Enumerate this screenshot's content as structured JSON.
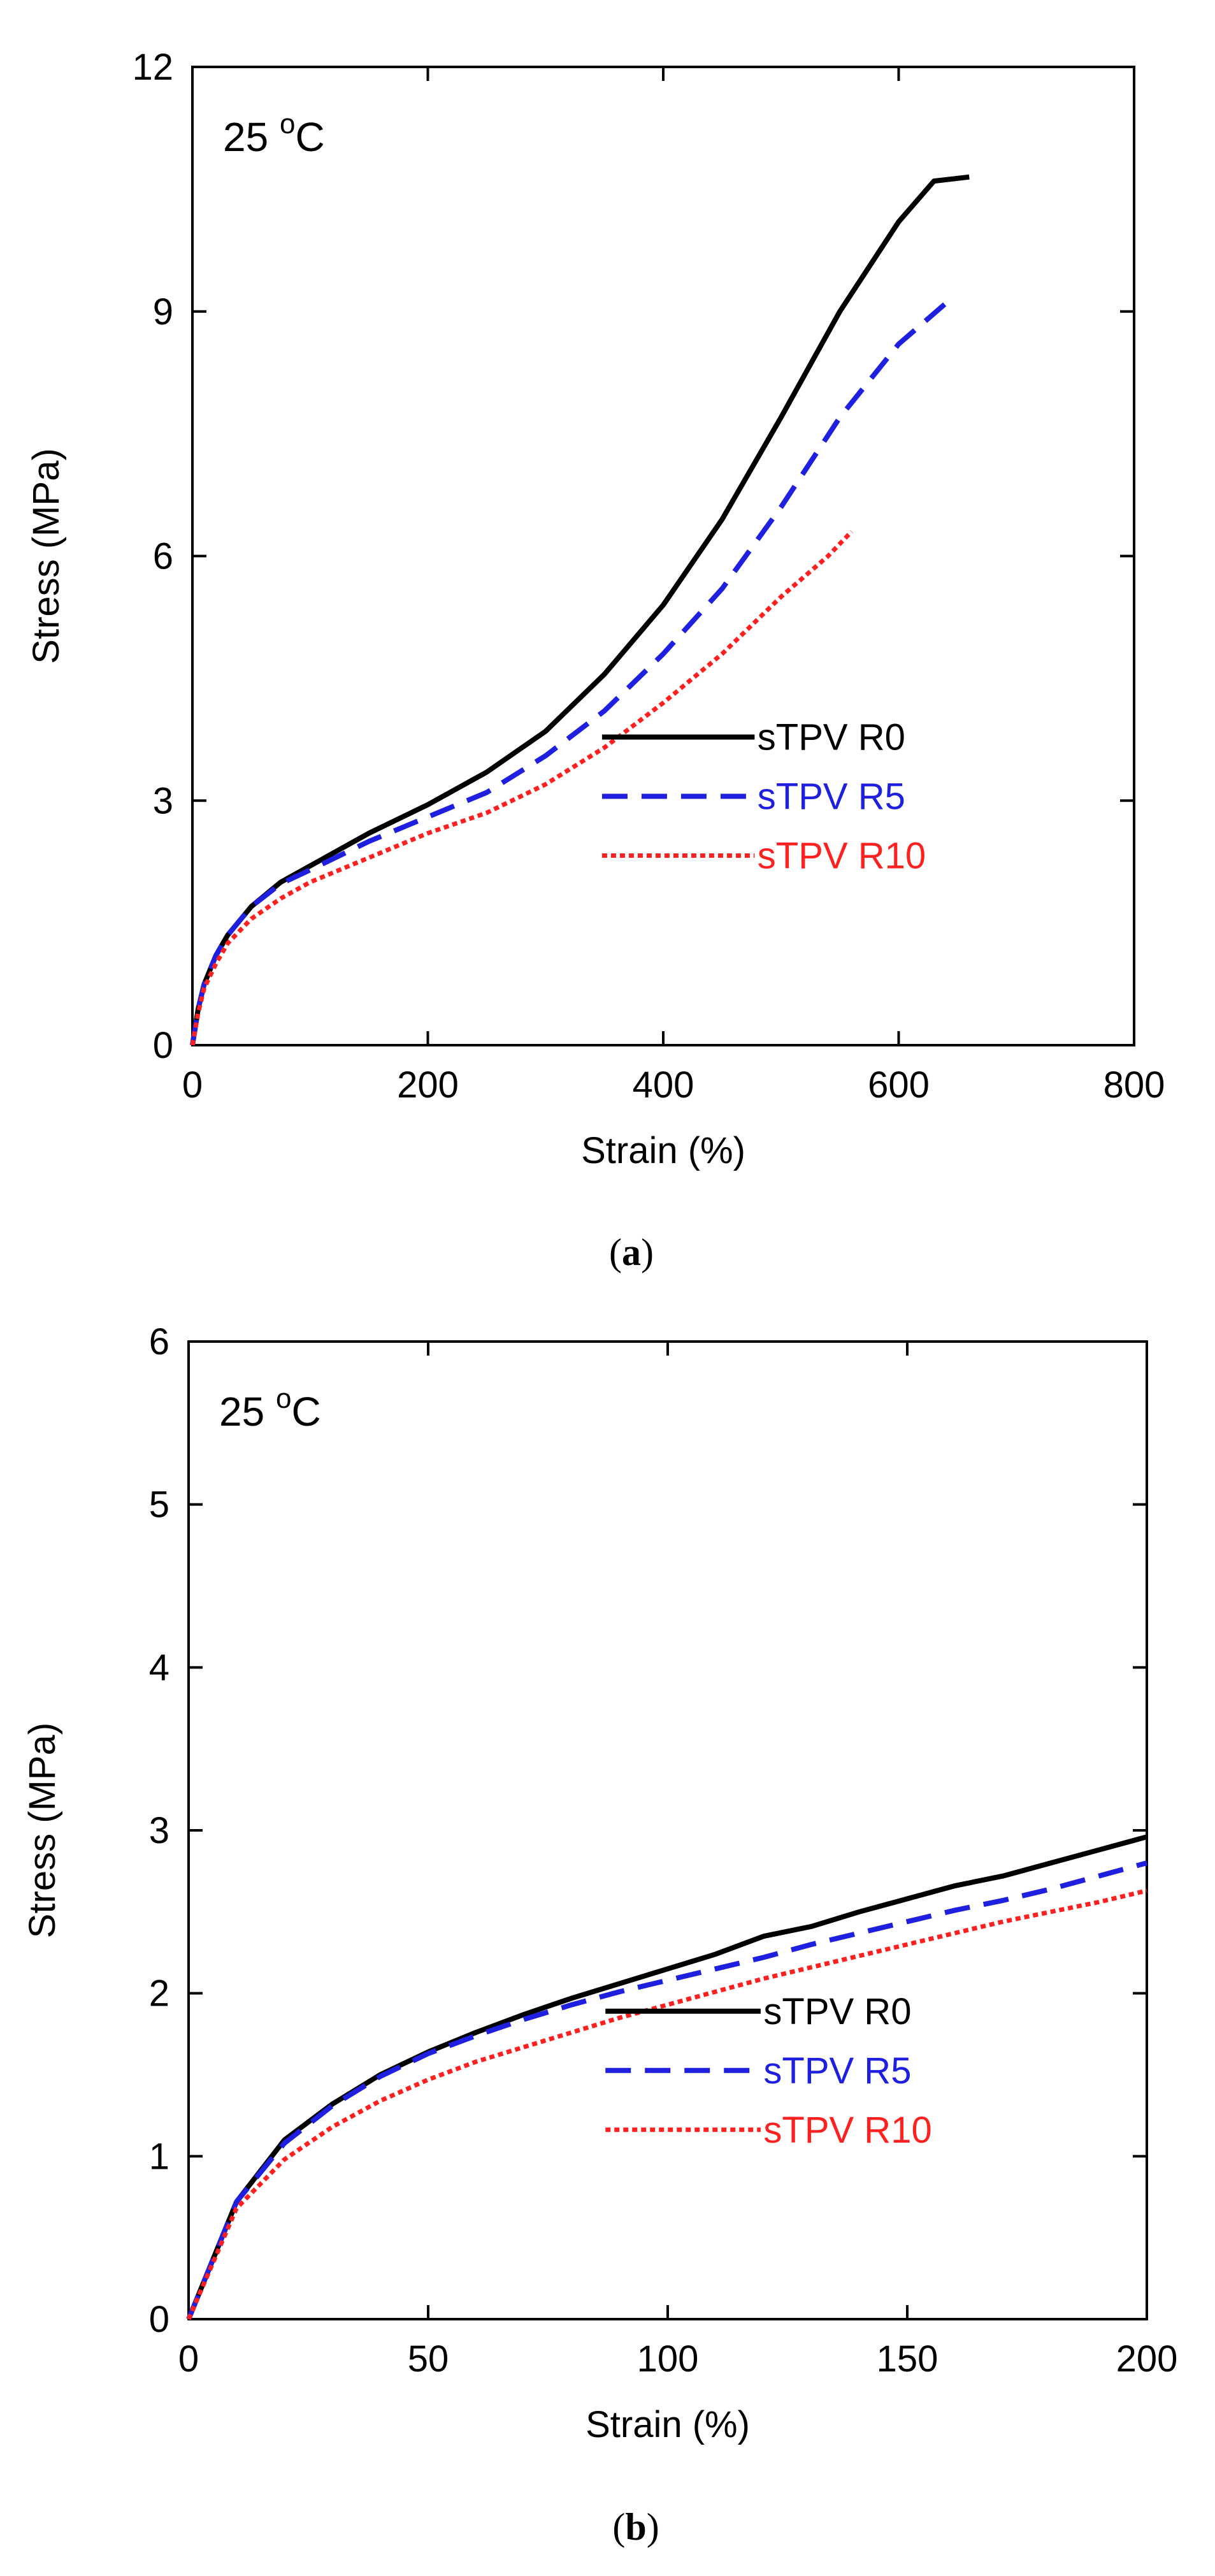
{
  "chart_data": [
    {
      "type": "line",
      "panel_caption": "(a)",
      "caption_letter": "a",
      "annotation": "25 °C",
      "xlabel": "Strain (%)",
      "ylabel": "Stress (MPa)",
      "xlim": [
        0,
        800
      ],
      "ylim": [
        0,
        12
      ],
      "xticks": [
        "0",
        "200",
        "400",
        "600",
        "800"
      ],
      "yticks": [
        "0",
        "3",
        "6",
        "9",
        "12"
      ],
      "legend_position": "bottom-right",
      "grid": false,
      "series": [
        {
          "name": "sTPV R0",
          "color": "#000000",
          "style": "solid",
          "x": [
            0,
            5,
            10,
            20,
            30,
            50,
            75,
            100,
            150,
            200,
            250,
            300,
            350,
            400,
            450,
            500,
            550,
            600,
            630,
            660
          ],
          "y": [
            0,
            0.45,
            0.75,
            1.1,
            1.35,
            1.7,
            2.0,
            2.2,
            2.6,
            2.95,
            3.35,
            3.85,
            4.55,
            5.4,
            6.45,
            7.7,
            9.0,
            10.1,
            10.6,
            10.65
          ]
        },
        {
          "name": "sTPV R5",
          "color": "#1f1fe0",
          "style": "dashed",
          "x": [
            0,
            5,
            10,
            20,
            30,
            50,
            75,
            100,
            150,
            200,
            250,
            300,
            350,
            400,
            450,
            500,
            550,
            600,
            640
          ],
          "y": [
            0,
            0.45,
            0.75,
            1.1,
            1.35,
            1.7,
            1.98,
            2.15,
            2.5,
            2.8,
            3.1,
            3.55,
            4.1,
            4.8,
            5.6,
            6.6,
            7.7,
            8.6,
            9.1
          ]
        },
        {
          "name": "sTPV R10",
          "color": "#ff2020",
          "style": "dotted",
          "x": [
            0,
            5,
            10,
            20,
            30,
            50,
            75,
            100,
            150,
            200,
            250,
            300,
            350,
            400,
            450,
            500,
            540,
            560
          ],
          "y": [
            0,
            0.4,
            0.7,
            1.0,
            1.25,
            1.55,
            1.8,
            2.0,
            2.3,
            2.6,
            2.85,
            3.2,
            3.65,
            4.2,
            4.8,
            5.5,
            6.0,
            6.3
          ]
        }
      ]
    },
    {
      "type": "line",
      "panel_caption": "(b)",
      "caption_letter": "b",
      "annotation": "25 °C",
      "xlabel": "Strain (%)",
      "ylabel": "Stress (MPa)",
      "xlim": [
        0,
        200
      ],
      "ylim": [
        0,
        6
      ],
      "xticks": [
        "0",
        "50",
        "100",
        "150",
        "200"
      ],
      "yticks": [
        "0",
        "1",
        "2",
        "3",
        "4",
        "5",
        "6"
      ],
      "legend_position": "bottom-right",
      "grid": false,
      "series": [
        {
          "name": "sTPV R0",
          "color": "#000000",
          "style": "solid",
          "x": [
            0,
            10,
            20,
            30,
            40,
            50,
            60,
            70,
            80,
            90,
            100,
            110,
            120,
            130,
            140,
            150,
            160,
            170,
            180,
            190,
            200
          ],
          "y": [
            0,
            0.72,
            1.1,
            1.32,
            1.5,
            1.64,
            1.76,
            1.87,
            1.97,
            2.06,
            2.15,
            2.24,
            2.35,
            2.41,
            2.5,
            2.58,
            2.66,
            2.72,
            2.8,
            2.88,
            2.96
          ]
        },
        {
          "name": "sTPV R5",
          "color": "#1f1fe0",
          "style": "dashed",
          "x": [
            0,
            10,
            20,
            30,
            40,
            50,
            60,
            70,
            80,
            90,
            100,
            110,
            120,
            130,
            140,
            150,
            160,
            170,
            180,
            190,
            200
          ],
          "y": [
            0,
            0.72,
            1.08,
            1.31,
            1.49,
            1.63,
            1.74,
            1.84,
            1.93,
            2.01,
            2.08,
            2.15,
            2.22,
            2.3,
            2.37,
            2.44,
            2.51,
            2.57,
            2.64,
            2.72,
            2.8
          ]
        },
        {
          "name": "sTPV R10",
          "color": "#ff2020",
          "style": "dotted",
          "x": [
            0,
            10,
            20,
            30,
            40,
            50,
            60,
            70,
            80,
            90,
            100,
            110,
            120,
            130,
            140,
            150,
            160,
            170,
            180,
            190,
            200
          ],
          "y": [
            0,
            0.68,
            0.98,
            1.18,
            1.34,
            1.47,
            1.58,
            1.67,
            1.76,
            1.85,
            1.93,
            2.01,
            2.09,
            2.16,
            2.23,
            2.3,
            2.37,
            2.44,
            2.5,
            2.56,
            2.63
          ]
        }
      ]
    }
  ]
}
